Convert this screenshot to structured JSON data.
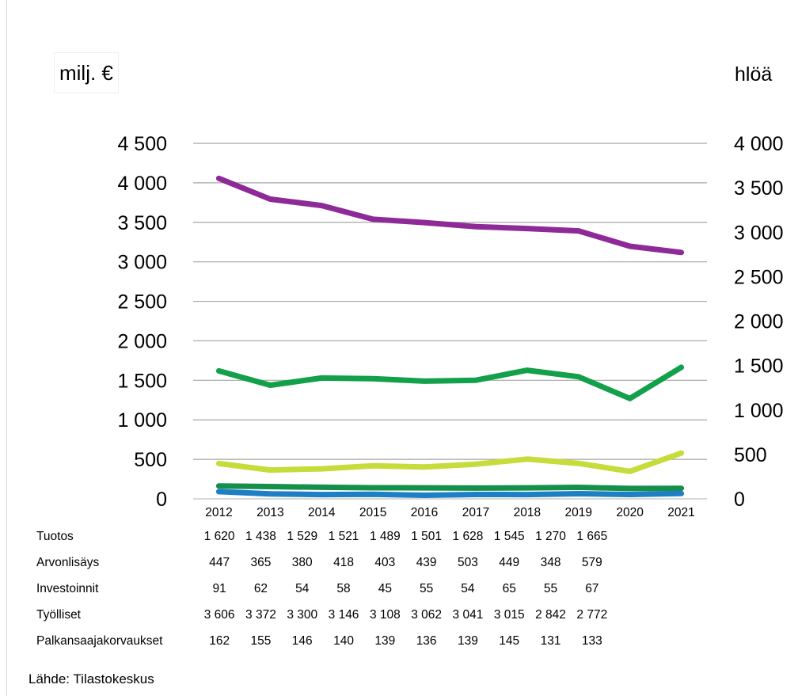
{
  "chart_data": {
    "type": "line",
    "left_axis_label": "milj. €",
    "right_axis_label": "hlöä",
    "left_ticks": [
      "0",
      "500",
      "1 000",
      "1 500",
      "2 000",
      "2 500",
      "3 000",
      "3 500",
      "4 000",
      "4 500"
    ],
    "right_ticks": [
      "0",
      "500",
      "1 000",
      "1 500",
      "2 000",
      "2 500",
      "3 000",
      "3 500",
      "4 000"
    ],
    "ylim_left": [
      0,
      4500
    ],
    "ylim_right": [
      0,
      4000
    ],
    "categories": [
      "2012",
      "2013",
      "2014",
      "2015",
      "2016",
      "2017",
      "2018",
      "2019",
      "2020",
      "2021"
    ],
    "series": [
      {
        "name": "Tuotos",
        "axis": "left",
        "color": "#12a04a",
        "values": [
          1620,
          1438,
          1529,
          1521,
          1489,
          1501,
          1628,
          1545,
          1270,
          1665
        ],
        "labels": [
          "1 620",
          "1 438",
          "1 529",
          "1 521",
          "1 489",
          "1 501",
          "1 628",
          "1 545",
          "1 270",
          "1 665"
        ]
      },
      {
        "name": "Arvonlisäys",
        "axis": "left",
        "color": "#c5dc3a",
        "values": [
          447,
          365,
          380,
          418,
          403,
          439,
          503,
          449,
          348,
          579
        ],
        "labels": [
          "447",
          "365",
          "380",
          "418",
          "403",
          "439",
          "503",
          "449",
          "348",
          "579"
        ]
      },
      {
        "name": "Investoinnit",
        "axis": "left",
        "color": "#1f7fc4",
        "values": [
          91,
          62,
          54,
          58,
          45,
          55,
          54,
          65,
          55,
          67
        ],
        "labels": [
          "91",
          "62",
          "54",
          "58",
          "45",
          "55",
          "54",
          "65",
          "55",
          "67"
        ]
      },
      {
        "name": "Työlliset",
        "axis": "right",
        "color": "#8e2a98",
        "values": [
          3606,
          3372,
          3300,
          3146,
          3108,
          3062,
          3041,
          3015,
          2842,
          2772
        ],
        "labels": [
          "3 606",
          "3 372",
          "3 300",
          "3 146",
          "3 108",
          "3 062",
          "3 041",
          "3 015",
          "2 842",
          "2 772"
        ]
      },
      {
        "name": "Palkansaajakorvaukset",
        "axis": "left",
        "color": "#15904a",
        "values": [
          162,
          155,
          146,
          140,
          139,
          136,
          139,
          145,
          131,
          133
        ],
        "labels": [
          "162",
          "155",
          "146",
          "140",
          "139",
          "136",
          "139",
          "145",
          "131",
          "133"
        ]
      }
    ],
    "grid": true
  },
  "source": "Lähde: Tilastokeskus"
}
